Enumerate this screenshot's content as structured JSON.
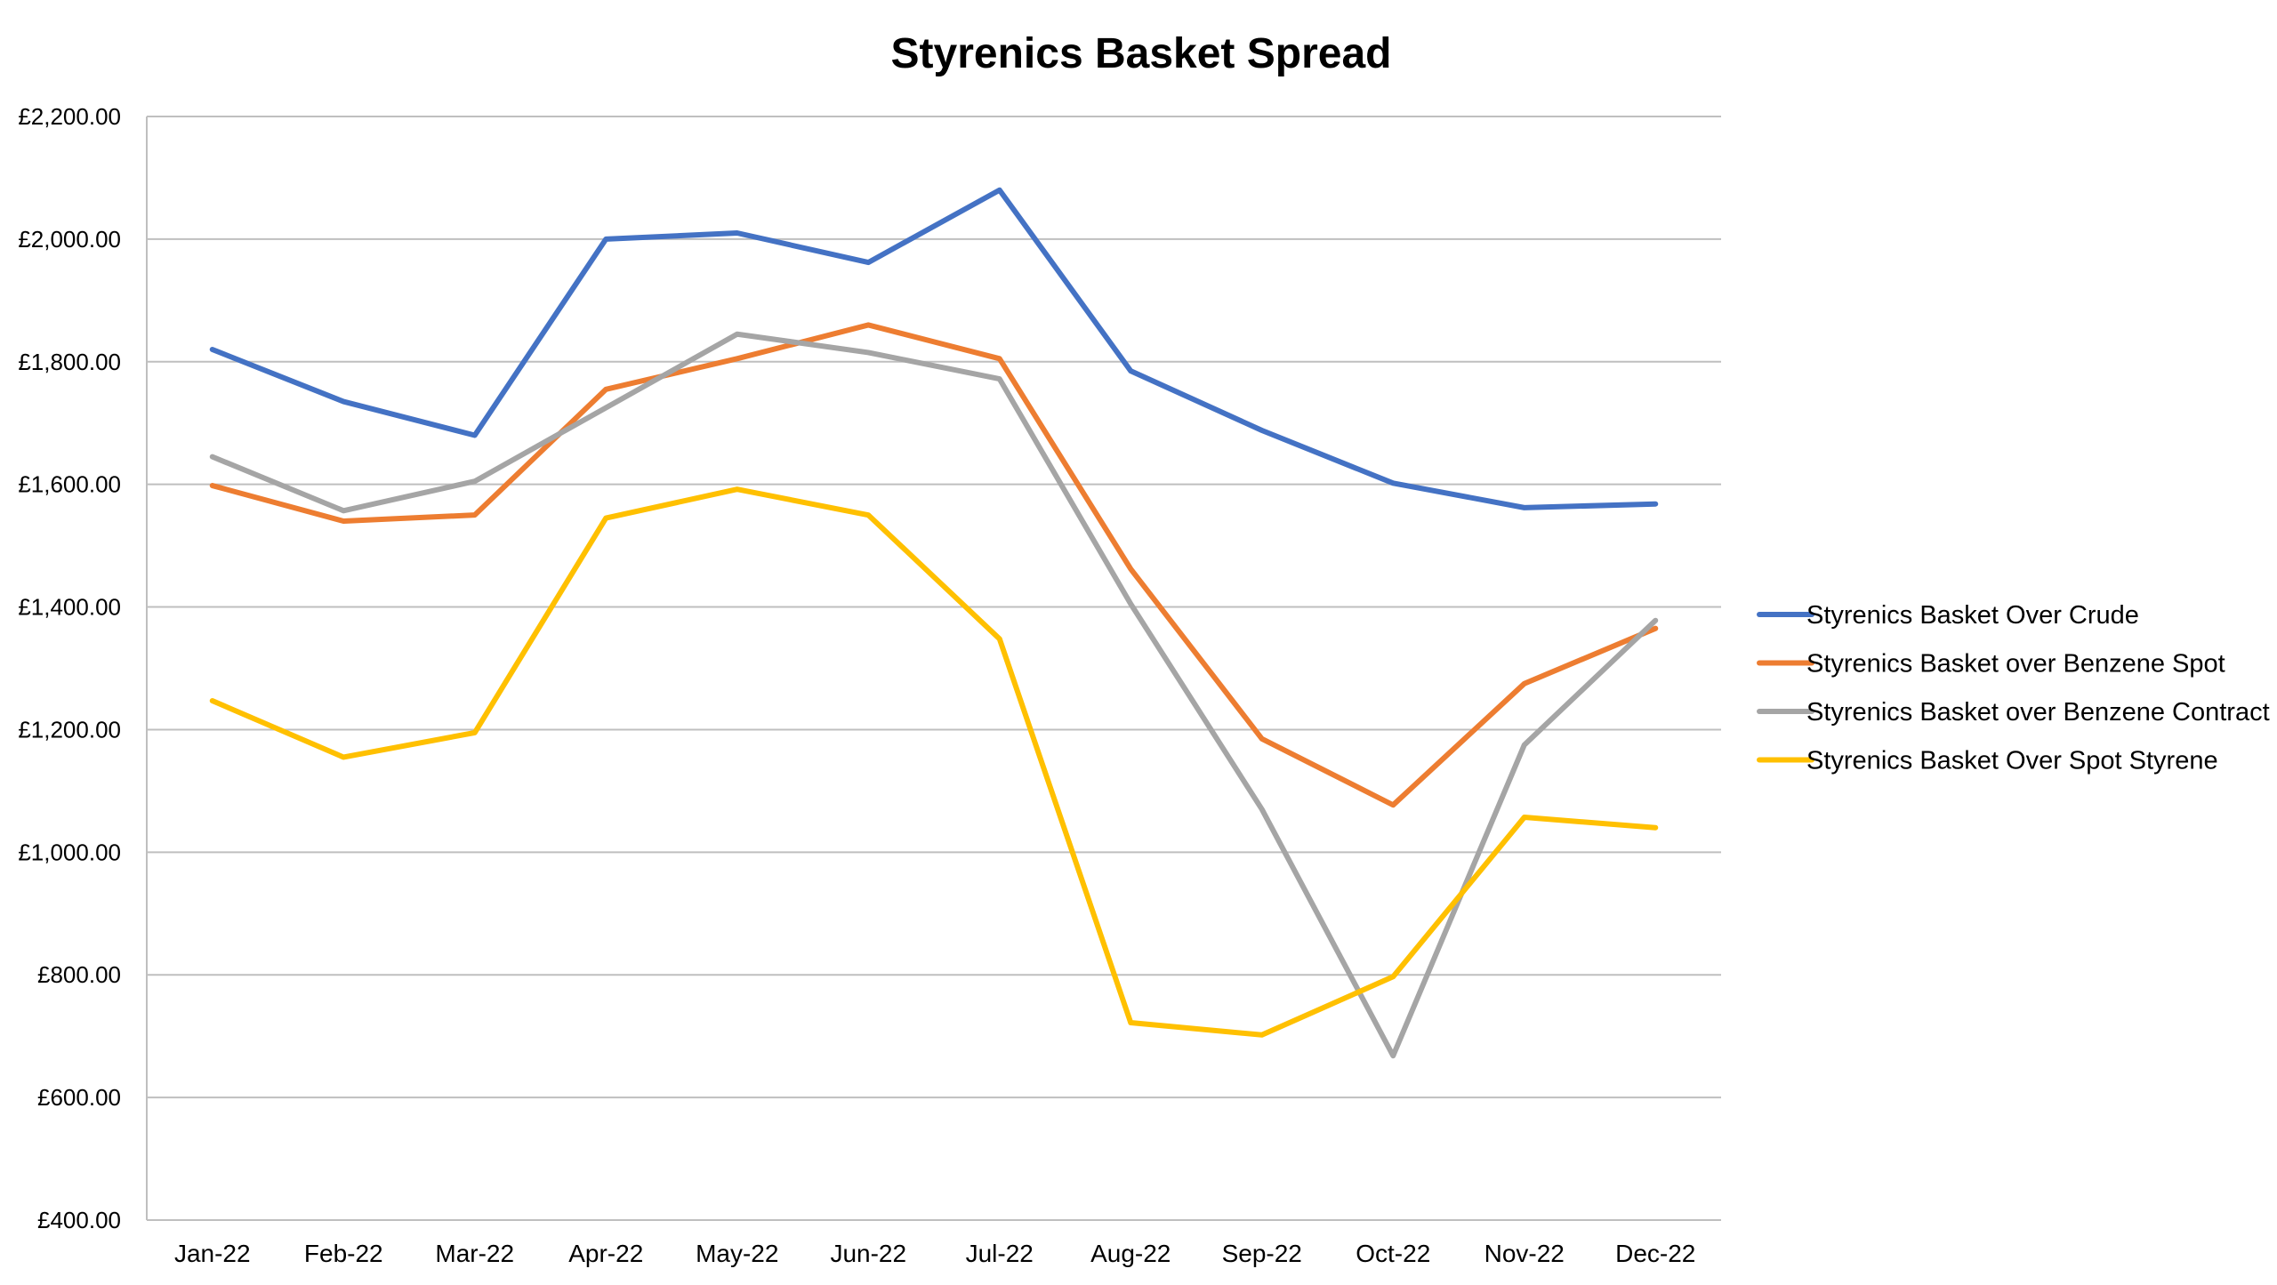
{
  "chart_data": {
    "type": "line",
    "title": "Styrenics Basket Spread",
    "xlabel": "",
    "ylabel": "",
    "categories": [
      "Jan-22",
      "Feb-22",
      "Mar-22",
      "Apr-22",
      "May-22",
      "Jun-22",
      "Jul-22",
      "Aug-22",
      "Sep-22",
      "Oct-22",
      "Nov-22",
      "Dec-22"
    ],
    "ylim": [
      400,
      2200
    ],
    "yticks": [
      400,
      600,
      800,
      1000,
      1200,
      1400,
      1600,
      1800,
      2000,
      2200
    ],
    "ytick_labels": [
      "£400.00",
      "£600.00",
      "£800.00",
      "£1,000.00",
      "£1,200.00",
      "£1,400.00",
      "£1,600.00",
      "£1,800.00",
      "£2,000.00",
      "£2,200.00"
    ],
    "grid": "horizontal",
    "legend_position": "right",
    "series": [
      {
        "name": "Styrenics Basket Over Crude",
        "color": "#4472C4",
        "values": [
          1820,
          1735,
          1680,
          2000,
          2010,
          1962,
          2080,
          1785,
          1688,
          1602,
          1562,
          1568
        ]
      },
      {
        "name": "Styrenics Basket over Benzene Spot",
        "color": "#ED7D31",
        "values": [
          1598,
          1540,
          1550,
          1755,
          1805,
          1860,
          1805,
          1462,
          1185,
          1077,
          1275,
          1365
        ]
      },
      {
        "name": "Styrenics Basket over Benzene Contract",
        "color": "#A5A5A5",
        "values": [
          1645,
          1557,
          1605,
          1725,
          1845,
          1815,
          1772,
          1405,
          1070,
          668,
          1175,
          1378
        ]
      },
      {
        "name": "Styrenics Basket Over Spot Styrene",
        "color": "#FFC000",
        "values": [
          1247,
          1155,
          1195,
          1545,
          1592,
          1550,
          1348,
          722,
          702,
          797,
          1057,
          1040
        ]
      }
    ]
  }
}
